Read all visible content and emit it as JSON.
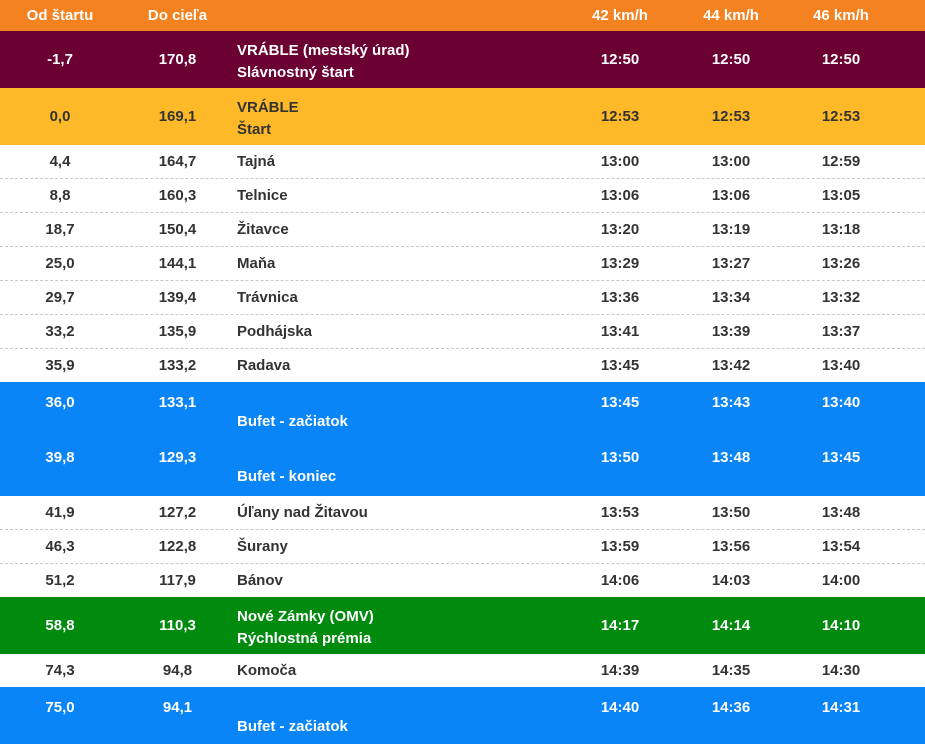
{
  "header": {
    "from_start": "Od štartu",
    "to_finish": "Do cieľa",
    "speed_42": "42 km/h",
    "speed_44": "44 km/h",
    "speed_46": "46 km/h"
  },
  "colors": {
    "header": "#f58220",
    "ceremonial": "#6b0033",
    "start": "#fdb927",
    "buffet": "#0a85f7",
    "sprint": "#008a0e"
  },
  "rows": [
    {
      "type": "ceremonial",
      "from_start": "-1,7",
      "to_finish": "170,8",
      "name": "VRÁBLE (mestský úrad)",
      "name2": "Slávnostný štart",
      "t42": "12:50",
      "t44": "12:50",
      "t46": "12:50"
    },
    {
      "type": "start",
      "from_start": "0,0",
      "to_finish": "169,1",
      "name": "VRÁBLE",
      "name2": "Štart",
      "t42": "12:53",
      "t44": "12:53",
      "t46": "12:53"
    },
    {
      "type": "normal",
      "from_start": "4,4",
      "to_finish": "164,7",
      "name": "Tajná",
      "t42": "13:00",
      "t44": "13:00",
      "t46": "12:59"
    },
    {
      "type": "normal",
      "from_start": "8,8",
      "to_finish": "160,3",
      "name": "Telnice",
      "t42": "13:06",
      "t44": "13:06",
      "t46": "13:05"
    },
    {
      "type": "normal",
      "from_start": "18,7",
      "to_finish": "150,4",
      "name": "Žitavce",
      "t42": "13:20",
      "t44": "13:19",
      "t46": "13:18"
    },
    {
      "type": "normal",
      "from_start": "25,0",
      "to_finish": "144,1",
      "name": "Maňa",
      "t42": "13:29",
      "t44": "13:27",
      "t46": "13:26"
    },
    {
      "type": "normal",
      "from_start": "29,7",
      "to_finish": "139,4",
      "name": "Trávnica",
      "t42": "13:36",
      "t44": "13:34",
      "t46": "13:32"
    },
    {
      "type": "normal",
      "from_start": "33,2",
      "to_finish": "135,9",
      "name": "Podhájska",
      "t42": "13:41",
      "t44": "13:39",
      "t46": "13:37"
    },
    {
      "type": "normal",
      "from_start": "35,9",
      "to_finish": "133,2",
      "name": "Radava",
      "t42": "13:45",
      "t44": "13:42",
      "t46": "13:40"
    },
    {
      "type": "buffet",
      "from_start": "36,0",
      "to_finish": "133,1",
      "name": "Bufet - začiatok",
      "t42": "13:45",
      "t44": "13:43",
      "t46": "13:40"
    },
    {
      "type": "buffet",
      "from_start": "39,8",
      "to_finish": "129,3",
      "name": "Bufet - koniec",
      "t42": "13:50",
      "t44": "13:48",
      "t46": "13:45"
    },
    {
      "type": "normal",
      "from_start": "41,9",
      "to_finish": "127,2",
      "name": "Úľany nad Žitavou",
      "t42": "13:53",
      "t44": "13:50",
      "t46": "13:48"
    },
    {
      "type": "normal",
      "from_start": "46,3",
      "to_finish": "122,8",
      "name": "Šurany",
      "t42": "13:59",
      "t44": "13:56",
      "t46": "13:54"
    },
    {
      "type": "normal",
      "from_start": "51,2",
      "to_finish": "117,9",
      "name": "Bánov",
      "t42": "14:06",
      "t44": "14:03",
      "t46": "14:00"
    },
    {
      "type": "sprint",
      "from_start": "58,8",
      "to_finish": "110,3",
      "name": "Nové Zámky (OMV)",
      "name2": "Rýchlostná prémia",
      "t42": "14:17",
      "t44": "14:14",
      "t46": "14:10"
    },
    {
      "type": "normal",
      "from_start": "74,3",
      "to_finish": "94,8",
      "name": "Komoča",
      "t42": "14:39",
      "t44": "14:35",
      "t46": "14:30"
    },
    {
      "type": "buffet",
      "from_start": "75,0",
      "to_finish": "94,1",
      "name": "Bufet - začiatok",
      "t42": "14:40",
      "t44": "14:36",
      "t46": "14:31"
    }
  ]
}
